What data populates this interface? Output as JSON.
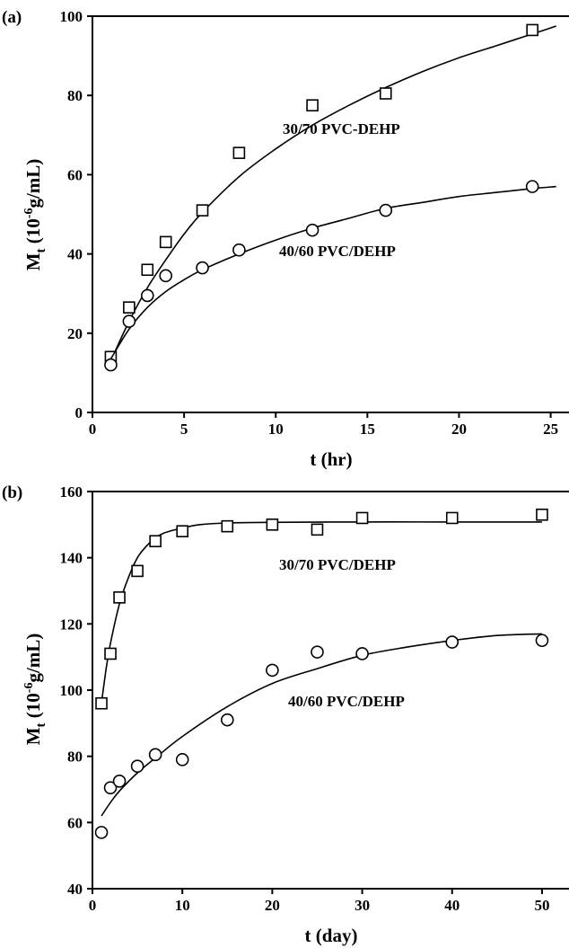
{
  "chart_data": [
    {
      "type": "scatter",
      "panel_label": "(a)",
      "xlabel": "t (hr)",
      "ylabel": {
        "main": "M",
        "sub": "t",
        "rest_open": " (10",
        "sup": "-6",
        "rest_close": "g/mL)"
      },
      "xlim": [
        0,
        26
      ],
      "ylim": [
        0,
        100
      ],
      "xticks": [
        0,
        5,
        10,
        15,
        20,
        25
      ],
      "yticks": [
        0,
        20,
        40,
        60,
        80,
        100
      ],
      "grid": false,
      "series": [
        {
          "name": "30/70  PVC-DEHP",
          "marker": "square",
          "x": [
            1,
            2,
            3,
            4,
            6,
            8,
            12,
            16,
            24
          ],
          "y": [
            14,
            26.5,
            36,
            43,
            51,
            65.5,
            77.5,
            80.5,
            96.5
          ],
          "fit": {
            "x": [
              1,
              2,
              3,
              4,
              5,
              6,
              8,
              10,
              12,
              14,
              16,
              18,
              20,
              22,
              24,
              25.3
            ],
            "y": [
              13,
              23,
              31.5,
              38.5,
              45,
              50.5,
              59.5,
              66.5,
              72.5,
              77.5,
              82,
              86,
              89.5,
              92.5,
              95.5,
              97.5
            ]
          }
        },
        {
          "name": "40/60  PVC/DEHP",
          "marker": "circle",
          "x": [
            1,
            2,
            3,
            4,
            6,
            8,
            12,
            16,
            24
          ],
          "y": [
            12,
            23,
            29.5,
            34.5,
            36.5,
            41,
            46,
            51,
            57
          ],
          "fit": {
            "x": [
              1,
              2,
              3,
              4,
              5,
              6,
              8,
              10,
              12,
              14,
              16,
              18,
              20,
              22,
              24,
              25.3
            ],
            "y": [
              13.5,
              21,
              26.5,
              30.5,
              33.5,
              36,
              40,
              43.5,
              46.5,
              49,
              51.5,
              53,
              54.5,
              55.5,
              56.5,
              57
            ]
          }
        }
      ]
    },
    {
      "type": "scatter",
      "panel_label": "(b)",
      "xlabel": "t (day)",
      "ylabel": {
        "main": "M",
        "sub": "t",
        "rest_open": " (10",
        "sup": "-6",
        "rest_close": "g/mL)"
      },
      "xlim": [
        0,
        53
      ],
      "ylim": [
        40,
        160
      ],
      "xticks": [
        0,
        10,
        20,
        30,
        40,
        50
      ],
      "yticks": [
        40,
        60,
        80,
        100,
        120,
        140,
        160
      ],
      "grid": false,
      "series": [
        {
          "name": "30/70  PVC/DEHP",
          "marker": "square",
          "x": [
            1,
            2,
            3,
            5,
            7,
            10,
            15,
            20,
            25,
            30,
            40,
            50
          ],
          "y": [
            96,
            111,
            128,
            136,
            145,
            148,
            149.5,
            150,
            148.5,
            152,
            152,
            153
          ],
          "fit": {
            "x": [
              1,
              1.5,
              2,
              3,
              4,
              5,
              6,
              7,
              8,
              10,
              12,
              15,
              20,
              30,
              40,
              50
            ],
            "y": [
              96,
              106,
              114,
              126,
              134,
              140,
              143.5,
              146,
              147.5,
              149,
              150,
              150.5,
              150.7,
              150.8,
              150.8,
              150.8
            ]
          }
        },
        {
          "name": "40/60  PVC/DEHP",
          "marker": "circle",
          "x": [
            1,
            2,
            3,
            5,
            7,
            10,
            15,
            20,
            25,
            30,
            40,
            50
          ],
          "y": [
            57,
            70.5,
            72.5,
            77,
            80.5,
            79,
            91,
            106,
            111.5,
            111,
            114.5,
            115
          ],
          "fit": {
            "x": [
              1,
              2,
              3,
              5,
              7,
              10,
              15,
              20,
              25,
              30,
              35,
              40,
              45,
              50
            ],
            "y": [
              62,
              66,
              69.5,
              75,
              79.5,
              86,
              95,
              102,
              106.5,
              110.5,
              113,
              115,
              116.5,
              117
            ]
          }
        }
      ]
    }
  ]
}
